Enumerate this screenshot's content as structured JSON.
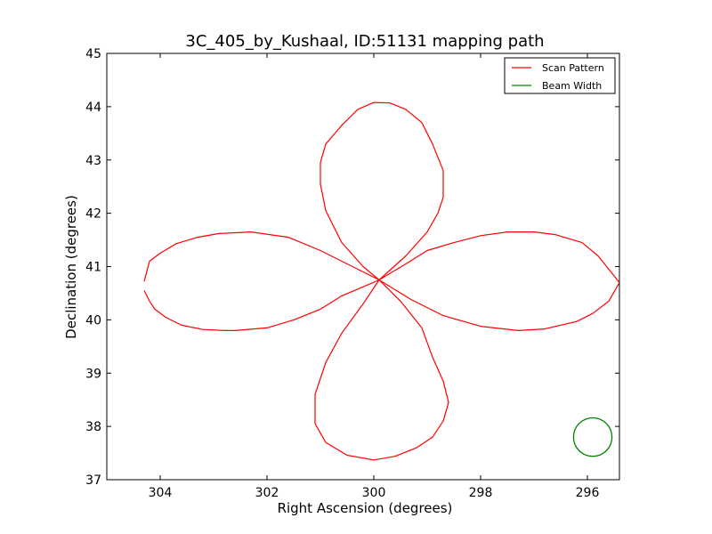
{
  "chart_data": {
    "type": "line",
    "title": "3C_405_by_Kushaal, ID:51131 mapping path",
    "xlabel": "Right Ascension (degrees)",
    "ylabel": "Declination (degrees)",
    "xlim": [
      305.0,
      295.4
    ],
    "ylim": [
      37,
      45
    ],
    "x_inverted": true,
    "xticks": [
      304,
      302,
      300,
      298,
      296
    ],
    "yticks": [
      37,
      38,
      39,
      40,
      41,
      42,
      43,
      44,
      45
    ],
    "grid": false,
    "legend": {
      "position": "top-right",
      "entries": [
        {
          "name": "Scan Pattern",
          "color": "#ff0000"
        },
        {
          "name": "Beam Width",
          "color": "#008000"
        }
      ]
    },
    "series": [
      {
        "name": "Scan Pattern",
        "color": "#ff0000",
        "x": [
          304.3,
          304.2,
          304.1,
          303.9,
          303.6,
          303.2,
          302.8,
          302.6,
          302.0,
          301.5,
          301.0,
          300.6,
          300.2,
          299.9,
          300.2,
          300.6,
          300.9,
          301.0,
          301.0,
          300.9,
          300.6,
          300.3,
          300.0,
          299.7,
          299.4,
          299.1,
          298.9,
          298.7,
          298.7,
          298.8,
          299.0,
          299.4,
          299.9,
          299.4,
          299.0,
          298.5,
          298.0,
          297.5,
          297.0,
          296.6,
          296.1,
          295.8,
          295.6,
          295.4,
          295.6,
          295.9,
          296.2,
          296.8,
          297.3,
          298.0,
          298.7,
          299.3,
          299.9,
          299.5,
          299.1,
          298.9,
          298.7,
          298.6,
          298.7,
          298.9,
          299.2,
          299.6,
          300.0,
          300.5,
          300.9,
          301.1,
          301.1,
          300.9,
          300.6,
          300.2,
          299.9,
          300.4,
          301.0,
          301.6,
          302.3,
          302.9,
          303.3,
          303.7,
          304.0,
          304.2,
          304.3
        ],
        "y": [
          40.55,
          40.35,
          40.2,
          40.05,
          39.9,
          39.82,
          39.8,
          39.8,
          39.85,
          40.0,
          40.2,
          40.45,
          40.62,
          40.75,
          41.0,
          41.45,
          42.05,
          42.55,
          42.95,
          43.3,
          43.65,
          43.95,
          44.08,
          44.07,
          43.95,
          43.7,
          43.3,
          42.8,
          42.3,
          42.0,
          41.65,
          41.2,
          40.75,
          41.05,
          41.3,
          41.45,
          41.58,
          41.65,
          41.65,
          41.6,
          41.45,
          41.2,
          40.95,
          40.7,
          40.35,
          40.12,
          39.97,
          39.83,
          39.8,
          39.88,
          40.08,
          40.38,
          40.75,
          40.35,
          39.85,
          39.3,
          38.85,
          38.45,
          38.1,
          37.8,
          37.6,
          37.44,
          37.37,
          37.46,
          37.7,
          38.05,
          38.6,
          39.2,
          39.75,
          40.3,
          40.75,
          41.0,
          41.3,
          41.55,
          41.65,
          41.62,
          41.55,
          41.43,
          41.25,
          41.1,
          40.72
        ]
      },
      {
        "name": "Beam Width",
        "color": "#008000",
        "shape": "circle",
        "center": [
          295.9,
          37.8
        ],
        "radius_deg": 0.36
      }
    ]
  }
}
